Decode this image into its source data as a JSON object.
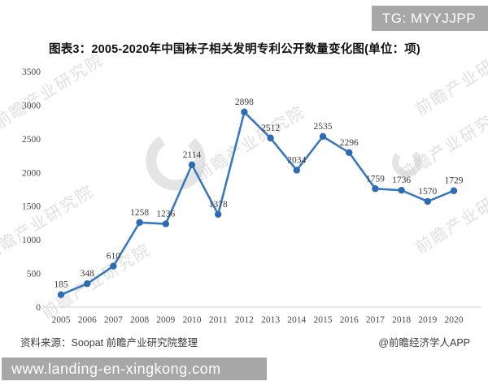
{
  "header": {
    "badge": "TG: MYYJJPP"
  },
  "title": "图表3：2005-2020年中国袜子相关发明专利公开数量变化图(单位：项)",
  "chart_data": {
    "type": "line",
    "title": "2005-2020年中国袜子相关发明专利公开数量变化图",
    "unit": "项",
    "categories": [
      "2005",
      "2006",
      "2007",
      "2008",
      "2009",
      "2010",
      "2011",
      "2012",
      "2013",
      "2014",
      "2015",
      "2016",
      "2017",
      "2018",
      "2019",
      "2020"
    ],
    "values": [
      185,
      348,
      610,
      1258,
      1236,
      2114,
      1378,
      2898,
      2512,
      2034,
      2535,
      2296,
      1759,
      1736,
      1570,
      1729
    ],
    "ylim": [
      0,
      3500
    ],
    "yticks": [
      0,
      500,
      1000,
      1500,
      2000,
      2500,
      3000,
      3500
    ],
    "grid": false,
    "legend_position": "none",
    "data_labels": true,
    "line_color": "#3a79c0",
    "marker_color": "#2d6cb5",
    "axis_line_color": "#d9d9d9",
    "tick_text_color": "#4a4a4a",
    "label_text_color": "#3a3a3a"
  },
  "footer": {
    "source": "资料来源：Soopat 前瞻产业研究院整理",
    "credit": "@前瞻经济学人APP",
    "url": "www.landing-en-xingkong.com"
  },
  "watermark": {
    "text": "前瞻产业研究院",
    "logo": "qianzhan-logo"
  }
}
